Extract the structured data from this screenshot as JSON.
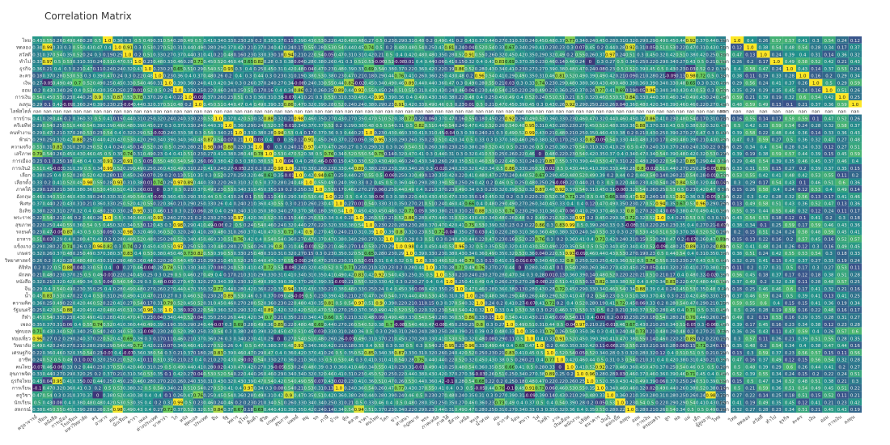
{
  "chart_data": [
    {
      "type": "heatmap",
      "title": "Correlation Matrix",
      "colorscale": [
        "#440154",
        "#3b528b",
        "#21918c",
        "#5ec962",
        "#fde725"
      ],
      "missing_label": "nan",
      "row_labels": [
        "ไทย",
        "ทดลอง",
        "สวัสดี",
        "ทำไป",
        "ธุรกิจ",
        "ละคร",
        "เงิน",
        "ออม",
        "การเงิน",
        "ลงทุน",
        "ไลฟ์สไตล์",
        "การบ้าน",
        "ครีเอทีฟ",
        "คนทำงาน",
        "ฟ้าผ่า",
        "ความจริง",
        "เสรีภาพ",
        "การเมือง",
        "การเงิน2",
        "เลือก",
        "เลือกตั้ง",
        "ภาคใต้",
        "อังกฤษ",
        "พิเศษ",
        "อิงลิช",
        "พระราช",
        "สุขภาพ",
        "รถยนต์",
        "อาหาร",
        "แข็งแรง",
        "เกษตร",
        "วิทยาศาสตร์",
        "ดิจิทัล",
        "ผักสด",
        "หนังสือ",
        "จีน",
        "น้ำ",
        "ความคิด",
        "รัฐมนตรี",
        "กีฬา",
        "เพลง",
        "ฟุตบอล",
        "ท่องเที่ยว",
        "วิทยาลัย",
        "เศรษฐกิจ",
        "อาชีพ",
        "คนไทย",
        "สุขภาพจิต",
        "ธุรกิจไทย",
        "การเรียน",
        "ครูวิชา",
        "นักเรียน",
        "สหกรณ์"
      ],
      "col_labels": [
        "ครูอาจารย์",
        "เรียน",
        "หนังสือ",
        "การเมือง",
        "โรงเรียน",
        "มหาวิทยาลัย",
        "ครู",
        "อาหาร",
        "สอน",
        "นักเรียน",
        "ดารา",
        "เพลง",
        "ต่างประเทศ",
        "บาคาร่า",
        "ไก่",
        "หนัง",
        "ฟุตบอล",
        "ประเทศ",
        "จีน",
        "รัฐ",
        "ทหาร",
        "ยุโรป",
        "สินค้า",
        "ชีวิต",
        "เกษตร",
        "สุขภาพ",
        "แพทย์",
        "หมู",
        "รถ",
        "ภาษี",
        "บ้าน",
        "หุ้น",
        "ตลาด",
        "ราคา",
        "คนไทย",
        "โลก",
        "ข่าว",
        "ศาสนา",
        "กฎหมาย",
        "พระ",
        "ภาคเหนือ",
        "ภาคใต้",
        "อีสาน",
        "เหนือ",
        "ทะเล",
        "น้ำท่วม",
        "ฝน",
        "อากาศ",
        "ร้อน",
        "หนาว",
        "ไฟ",
        "ไฟฟ้า",
        "งาน",
        "เงินเดือน",
        "พนักงาน",
        "บริษัท",
        "ธนาคาร",
        "เงินกู้",
        "ดอกเบี้ย",
        "ลงทุน",
        "ออม",
        "การเงิน",
        "ครอบครัว",
        "ลูก",
        "พ่อ",
        "แม่",
        "เด็ก",
        "ผู้สูงอายุ",
        "ไทย"
      ],
      "corner_cols": [
        "ไทย",
        "ทดลอง",
        "สวัสดี",
        "ทำไป",
        "ธุรกิจ",
        "ละคร",
        "เงิน",
        "ออม",
        "การเงิน",
        "ลงทุน"
      ],
      "values_note": "dense 53x69 numeric grid, values in [-0.2, 1.0], diagonal = 1.0, one nan row",
      "nan_row_index": 10,
      "xlabel": "",
      "ylabel": ""
    }
  ]
}
